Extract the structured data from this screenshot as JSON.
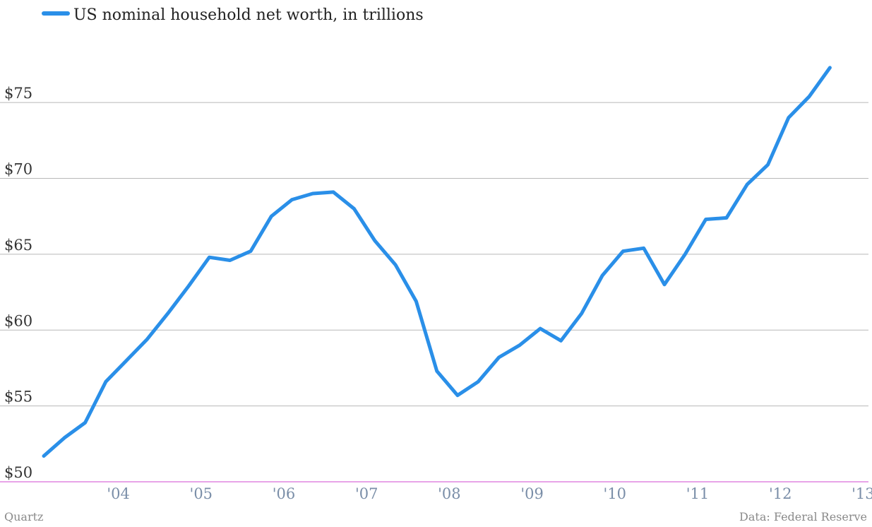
{
  "chart_data": {
    "type": "line",
    "series": [
      {
        "name": "US nominal household net worth, in trillions",
        "color": "#2a8fe8",
        "values": [
          51.7,
          52.9,
          53.9,
          56.6,
          58.0,
          59.4,
          61.1,
          62.9,
          64.8,
          64.6,
          65.2,
          67.5,
          68.6,
          69.0,
          69.1,
          68.0,
          65.9,
          64.3,
          61.9,
          57.3,
          55.7,
          56.6,
          58.2,
          59.0,
          60.1,
          59.3,
          61.1,
          63.6,
          65.2,
          65.4,
          63.0,
          65.0,
          67.3,
          67.4,
          69.6,
          70.9,
          74.0,
          75.4,
          77.3
        ]
      }
    ],
    "x": [
      "2003-Q3",
      "2003-Q4",
      "2004-Q1",
      "2004-Q2",
      "2004-Q3",
      "2004-Q4",
      "2005-Q1",
      "2005-Q2",
      "2005-Q3",
      "2005-Q4",
      "2006-Q1",
      "2006-Q2",
      "2006-Q3",
      "2006-Q4",
      "2007-Q1",
      "2007-Q2",
      "2007-Q3",
      "2007-Q4",
      "2008-Q1",
      "2008-Q2",
      "2008-Q3",
      "2008-Q4",
      "2009-Q1",
      "2009-Q2",
      "2009-Q3",
      "2009-Q4",
      "2010-Q1",
      "2010-Q2",
      "2010-Q3",
      "2010-Q4",
      "2011-Q1",
      "2011-Q2",
      "2011-Q3",
      "2011-Q4",
      "2012-Q1",
      "2012-Q2",
      "2012-Q3",
      "2012-Q4",
      "2013-Q1"
    ],
    "x_tick_labels": [
      "'04",
      "'05",
      "'06",
      "'07",
      "'08",
      "'09",
      "'10",
      "'11",
      "'12",
      "'13"
    ],
    "y_ticks": [
      50,
      55,
      60,
      65,
      70,
      75
    ],
    "y_tick_labels": [
      "$50",
      "$55",
      "$60",
      "$65",
      "$70",
      "$75"
    ],
    "ylim": [
      50,
      78.5
    ],
    "legend_placement": "top-left",
    "grid": true,
    "colors": {
      "line": "#2a8fe8",
      "grid": "#b8b8b8",
      "baseline": "#d04ad0",
      "x_tick": "#7a8ea8"
    }
  },
  "footer": {
    "source_left": "Quartz",
    "source_right": "Data: Federal Reserve"
  }
}
